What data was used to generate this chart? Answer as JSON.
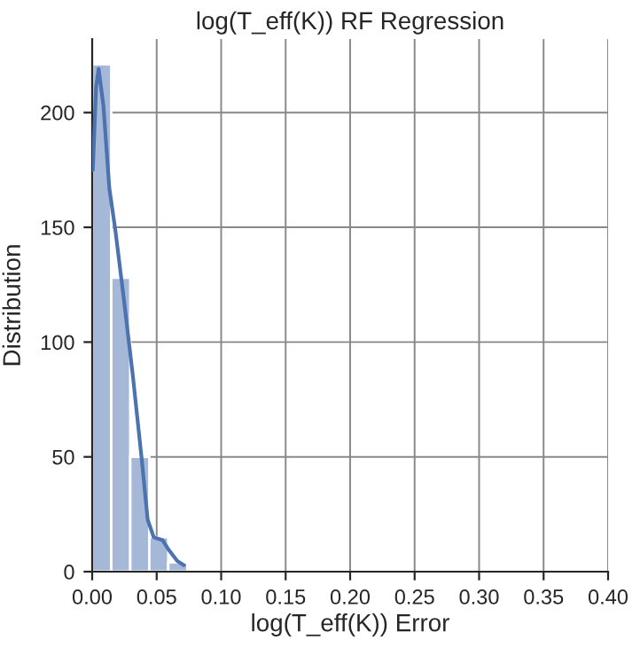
{
  "chart_data": {
    "type": "histogram",
    "title": "log(T_eff(K)) RF Regression",
    "xlabel": "log(T_eff(K)) Error",
    "ylabel": "Distribution",
    "bins": [
      0,
      0.0148,
      0.0295,
      0.0443,
      0.059,
      0.0738
    ],
    "series": [
      {
        "color": "#a5b8d8",
        "values": [
          221,
          128,
          50,
          15,
          4
        ]
      },
      {
        "type": "line",
        "color": "#4c72b0",
        "x": [
          0.0005,
          0.003,
          0.005,
          0.0087,
          0.0133,
          0.0179,
          0.0247,
          0.0316,
          0.0385,
          0.043,
          0.0477,
          0.0546,
          0.059,
          0.066,
          0.0711
        ],
        "values": [
          175,
          211,
          219,
          203,
          167,
          149,
          118,
          85,
          48.5,
          22.7,
          15,
          13.7,
          9.8,
          4.6,
          2.8
        ]
      }
    ],
    "xlim": [
      0,
      0.4
    ],
    "xticks": [
      {
        "value": 0,
        "label": "0.00"
      },
      {
        "value": 0.05,
        "label": "0.05"
      },
      {
        "value": 0.1,
        "label": "0.10"
      },
      {
        "value": 0.15,
        "label": "0.15"
      },
      {
        "value": 0.2,
        "label": "0.20"
      },
      {
        "value": 0.25,
        "label": "0.25"
      },
      {
        "value": 0.3,
        "label": "0.30"
      },
      {
        "value": 0.35,
        "label": "0.35"
      },
      {
        "value": 0.4,
        "label": "0.40"
      }
    ],
    "ylim": [
      0,
      232
    ],
    "yticks": [
      0,
      50,
      100,
      150,
      200
    ],
    "grid": true,
    "legend": false
  }
}
